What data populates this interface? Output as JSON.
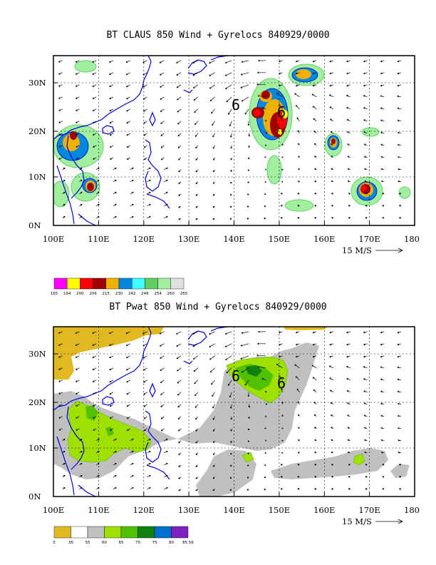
{
  "panels": [
    {
      "title": "BT CLAUS 850 Wind + Gyrelocs 840929/0000",
      "field": "CLAUS brightness temperature",
      "x_ticks": [
        "100E",
        "110E",
        "120E",
        "130E",
        "140E",
        "150E",
        "160E",
        "170E",
        "180"
      ],
      "y_ticks": [
        "0N",
        "10N",
        "20N",
        "30N"
      ],
      "gyre_label": "6",
      "gyres": [
        {
          "lon": 140.0,
          "lat": 25.5
        },
        {
          "lon": 149.5,
          "lat": 24.0
        }
      ],
      "wind_scale_label": "15 M/S",
      "colorbar": {
        "labels": [
          "165",
          "194",
          "200",
          "206",
          "215",
          "230",
          "242",
          "248",
          "254",
          "260",
          "265"
        ],
        "colors": [
          "#ff00ff",
          "#ffff00",
          "#ff0000",
          "#a00000",
          "#f0b000",
          "#0088e0",
          "#40ffff",
          "#60d060",
          "#a0f0a0",
          "#e0e0e0"
        ]
      }
    },
    {
      "title": "BT Pwat 850 Wind + Gyrelocs 840929/0000",
      "field": "Precipitable water",
      "x_ticks": [
        "100E",
        "110E",
        "120E",
        "130E",
        "140E",
        "150E",
        "160E",
        "170E",
        "180"
      ],
      "y_ticks": [
        "0N",
        "10N",
        "20N",
        "30N"
      ],
      "gyre_label": "6",
      "gyres": [
        {
          "lon": 140.0,
          "lat": 25.5
        },
        {
          "lon": 149.5,
          "lat": 24.0
        }
      ],
      "wind_scale_label": "15 M/S",
      "colorbar": {
        "labels": [
          "0",
          "35",
          "55",
          "60",
          "65",
          "70",
          "75",
          "80",
          "85.56"
        ],
        "colors": [
          "#e0b820",
          "#ffffff",
          "#c0c0c0",
          "#a0e000",
          "#50c000",
          "#108010",
          "#0070d0",
          "#8020c0"
        ]
      }
    }
  ],
  "chart_data": [
    {
      "type": "heatmap",
      "title": "BT CLAUS 850 Wind + Gyrelocs 840929/0000",
      "xlabel": "",
      "ylabel": "",
      "xlim": [
        100,
        180
      ],
      "ylim": [
        0,
        35
      ],
      "x_ticks": [
        "100E",
        "110E",
        "120E",
        "130E",
        "140E",
        "150E",
        "160E",
        "170E",
        "180"
      ],
      "y_ticks": [
        "0N",
        "10N",
        "20N",
        "30N"
      ],
      "grid": true,
      "vectors": "850 hPa wind",
      "wind_reference": "15 M/S",
      "gyre_locations": [
        {
          "lon": 140.0,
          "lat": 25.5,
          "label": "6"
        },
        {
          "lon": 149.5,
          "lat": 24.0,
          "label": "6"
        }
      ],
      "features": [
        {
          "lon": 147.0,
          "lat": 23.0,
          "level": "200"
        },
        {
          "lon": 150.0,
          "lat": 20.5,
          "level": "194"
        },
        {
          "lon": 146.5,
          "lat": 27.0,
          "level": "215"
        },
        {
          "lon": 154.0,
          "lat": 31.5,
          "level": "230"
        },
        {
          "lon": 169.0,
          "lat": 7.5,
          "level": "206"
        },
        {
          "lon": 164.0,
          "lat": 17.0,
          "level": "206"
        },
        {
          "lon": 108.5,
          "lat": 8.5,
          "level": "206"
        },
        {
          "lon": 104.0,
          "lat": 18.5,
          "level": "206"
        }
      ]
    },
    {
      "type": "heatmap",
      "title": "BT Pwat 850 Wind + Gyrelocs 840929/0000",
      "xlabel": "",
      "ylabel": "",
      "xlim": [
        100,
        180
      ],
      "ylim": [
        0,
        35
      ],
      "x_ticks": [
        "100E",
        "110E",
        "120E",
        "130E",
        "140E",
        "150E",
        "160E",
        "170E",
        "180"
      ],
      "y_ticks": [
        "0N",
        "10N",
        "20N",
        "30N"
      ],
      "grid": true,
      "vectors": "850 hPa wind",
      "wind_reference": "15 M/S",
      "gyre_locations": [
        {
          "lon": 140.0,
          "lat": 25.5,
          "label": "6"
        },
        {
          "lon": 149.5,
          "lat": 24.0,
          "label": "6"
        }
      ],
      "features": [
        {
          "lon": 145.0,
          "lat": 25.0,
          "level": "65"
        },
        {
          "lon": 110.0,
          "lat": 16.0,
          "level": "60"
        },
        {
          "lon": 168.0,
          "lat": 8.5,
          "level": "60"
        },
        {
          "lon": 102.0,
          "lat": 32.0,
          "level": "0"
        }
      ]
    }
  ]
}
